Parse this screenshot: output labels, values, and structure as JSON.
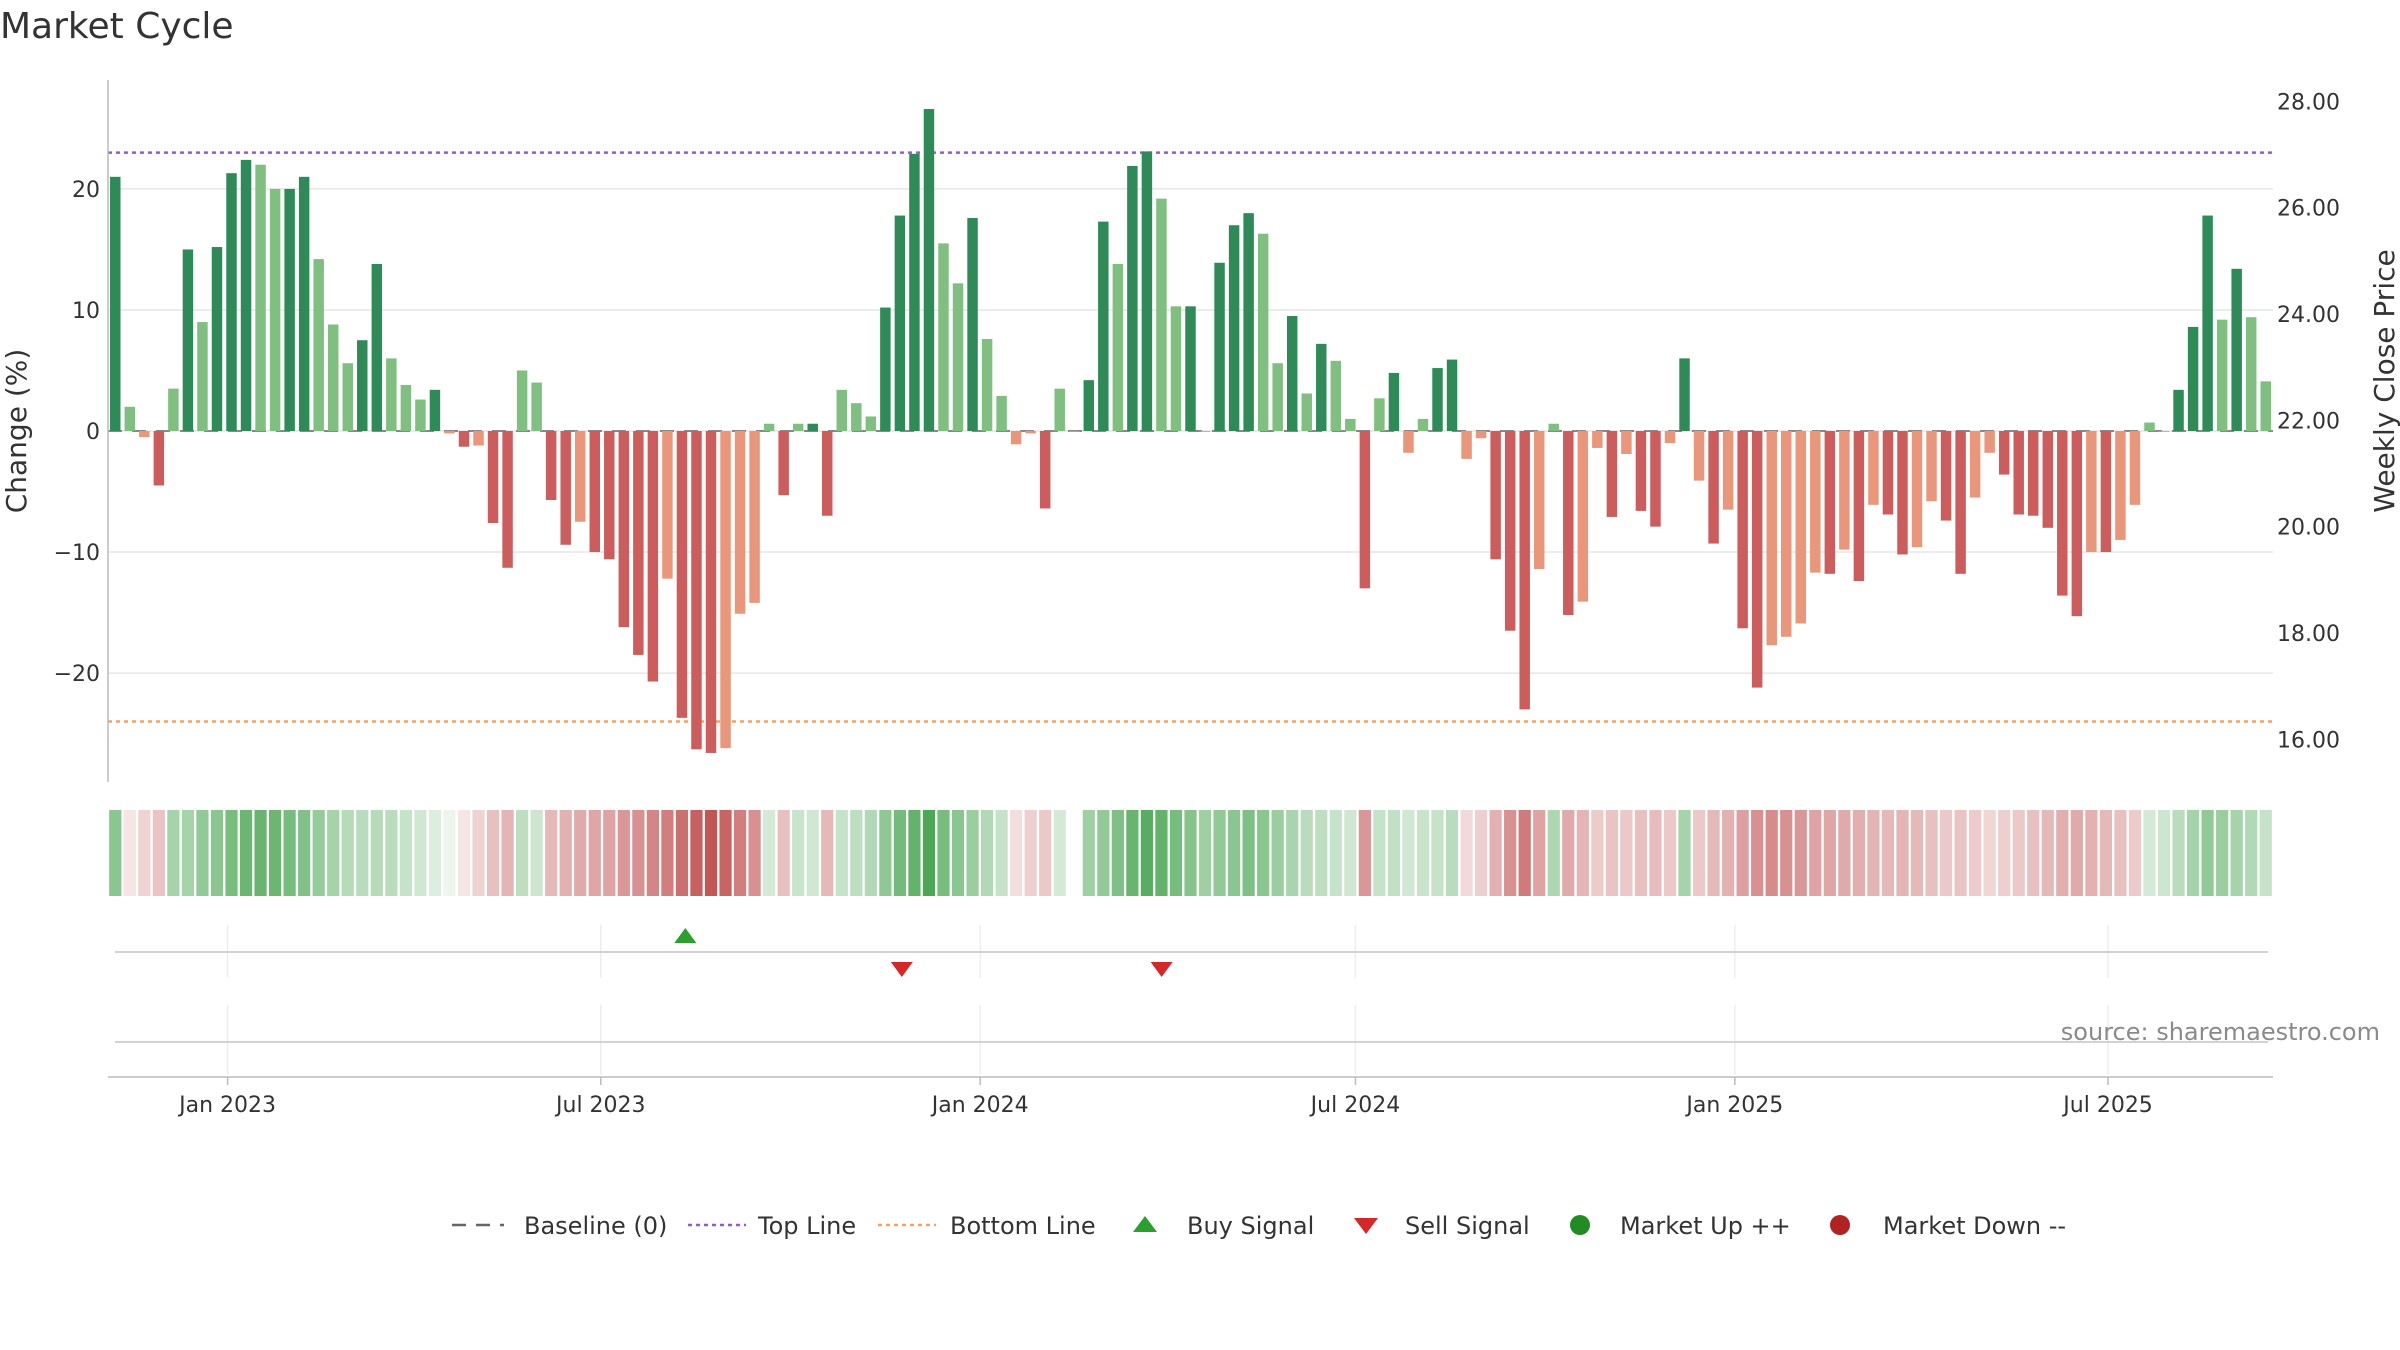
{
  "title": "Market Cycle",
  "source": "source: sharemaestro.com",
  "colors": {
    "up_strong": "#2e8b57",
    "up_weak": "#7fbf7f",
    "down_strong": "#cd5c5c",
    "down_weak": "#e9967a",
    "top_line": "#9b59d0",
    "bottom_line": "#f4a460",
    "buy": "#2ca02c",
    "sell": "#d62728",
    "market_up": "#228b22",
    "market_down": "#b22222",
    "baseline": "#666666"
  },
  "legend": [
    {
      "label": "Baseline (0)",
      "icon": "dash-line"
    },
    {
      "label": "Top Line",
      "icon": "dotted-purple-line"
    },
    {
      "label": "Bottom Line",
      "icon": "dotted-orange-line"
    },
    {
      "label": "Buy Signal",
      "icon": "triangle-up"
    },
    {
      "label": "Sell Signal",
      "icon": "triangle-down"
    },
    {
      "label": "Market Up ++",
      "icon": "green-dot"
    },
    {
      "label": "Market Down --",
      "icon": "red-dot"
    }
  ],
  "chart_data": {
    "type": "bar",
    "title": "Market Cycle",
    "ylabel": "Change (%)",
    "y2label": "Weekly Close Price",
    "ylim": [
      -29,
      29
    ],
    "y2lim": [
      15.2,
      28.4
    ],
    "yticks": [
      20,
      10,
      0,
      -10,
      -20
    ],
    "ytick_labels": [
      "20",
      "10",
      "0",
      "−10",
      "−20"
    ],
    "y2ticks": [
      28,
      26,
      24,
      22,
      20,
      18,
      16
    ],
    "y2tick_labels": [
      "28.00",
      "26.00",
      "24.00",
      "22.00",
      "20.00",
      "18.00",
      "16.00"
    ],
    "top_line": 23,
    "bottom_line": -24,
    "baseline": 0,
    "x_start": "2022-11-04",
    "x_end": "2025-09-19",
    "xticks": [
      "2023-01-01",
      "2023-07-01",
      "2024-01-01",
      "2024-07-01",
      "2025-01-01",
      "2025-07-01"
    ],
    "xtick_labels": [
      "Jan 2023",
      "Jul 2023",
      "Jan 2024",
      "Jul 2024",
      "Jan 2025",
      "Jul 2025"
    ],
    "values": [
      21,
      2,
      -0.5,
      -4.5,
      3.5,
      15,
      9,
      15.2,
      21.3,
      22.4,
      22,
      20,
      20,
      21,
      14.2,
      8.8,
      5.6,
      7.5,
      13.8,
      6,
      3.8,
      2.6,
      3.4,
      -0.2,
      -1.3,
      -1.2,
      -7.6,
      -11.3,
      5,
      4,
      -5.7,
      -9.4,
      -7.5,
      -10,
      -10.6,
      -16.2,
      -18.5,
      -20.7,
      -12.2,
      -23.7,
      -26.3,
      -26.6,
      -26.2,
      -15.1,
      -14.2,
      0.6,
      -5.3,
      0.6,
      0.6,
      -7,
      3.4,
      2.3,
      1.2,
      10.2,
      17.8,
      22.9,
      26.6,
      15.5,
      12.2,
      17.6,
      7.6,
      2.9,
      -1.1,
      -0.2,
      -6.4,
      3.5,
      0,
      4.2,
      17.3,
      13.8,
      21.9,
      23.1,
      19.2,
      10.3,
      10.3,
      0,
      13.9,
      17,
      18,
      16.3,
      5.6,
      9.5,
      3.1,
      7.2,
      5.8,
      1,
      -13,
      2.7,
      4.8,
      -1.8,
      1,
      5.2,
      5.9,
      -2.3,
      -0.6,
      -10.6,
      -16.5,
      -23,
      -11.4,
      0.6,
      -15.2,
      -14.1,
      -1.4,
      -7.1,
      -1.9,
      -6.6,
      -7.9,
      -1,
      6,
      -4.1,
      -9.3,
      -6.5,
      -16.3,
      -21.2,
      -17.7,
      -17,
      -15.9,
      -11.7,
      -11.8,
      -9.8,
      -12.4,
      -6.1,
      -6.9,
      -10.2,
      -9.6,
      -5.8,
      -7.4,
      -11.8,
      -5.5,
      -1.8,
      -3.6,
      -6.9,
      -7,
      -8,
      -13.6,
      -15.3,
      -10,
      -10,
      -9,
      -6.1,
      0.7,
      0,
      3.4,
      8.6,
      17.8,
      9.2,
      13.4,
      9.4,
      4.1
    ],
    "momentum": [
      0.6,
      -0.14,
      -0.24,
      -0.32,
      0.46,
      0.46,
      0.56,
      0.6,
      0.7,
      0.76,
      0.78,
      0.76,
      0.7,
      0.64,
      0.54,
      0.46,
      0.38,
      0.36,
      0.38,
      0.36,
      0.3,
      0.24,
      0.18,
      0.1,
      -0.14,
      -0.24,
      -0.34,
      -0.4,
      0.34,
      0.26,
      -0.38,
      -0.42,
      -0.46,
      -0.48,
      -0.5,
      -0.56,
      -0.6,
      -0.66,
      -0.7,
      -0.78,
      -0.86,
      -0.92,
      -0.84,
      -0.7,
      -0.6,
      0.22,
      -0.34,
      0.28,
      0.24,
      -0.38,
      0.3,
      0.34,
      0.4,
      0.58,
      0.72,
      0.8,
      0.92,
      0.7,
      0.6,
      0.52,
      0.4,
      0.3,
      -0.18,
      -0.26,
      -0.3,
      0.22,
      null,
      0.5,
      0.56,
      0.66,
      0.78,
      0.86,
      0.8,
      0.7,
      0.62,
      0.5,
      0.56,
      0.6,
      0.66,
      0.6,
      0.52,
      0.44,
      0.36,
      0.34,
      0.3,
      0.24,
      -0.56,
      0.3,
      0.32,
      0.24,
      0.28,
      0.3,
      0.36,
      -0.2,
      -0.26,
      -0.42,
      -0.6,
      -0.72,
      -0.5,
      0.42,
      -0.46,
      -0.4,
      -0.28,
      -0.32,
      -0.3,
      -0.34,
      -0.36,
      -0.3,
      0.46,
      -0.3,
      -0.38,
      -0.42,
      -0.52,
      -0.6,
      -0.62,
      -0.6,
      -0.56,
      -0.5,
      -0.48,
      -0.46,
      -0.44,
      -0.4,
      -0.38,
      -0.4,
      -0.38,
      -0.34,
      -0.3,
      -0.32,
      -0.28,
      -0.22,
      -0.26,
      -0.3,
      -0.34,
      -0.38,
      -0.44,
      -0.46,
      -0.42,
      -0.38,
      -0.34,
      -0.28,
      0.22,
      0.26,
      0.36,
      0.46,
      0.56,
      0.52,
      0.46,
      0.4,
      0.3
    ],
    "buy_signals": [
      "2023-08-11"
    ],
    "sell_signals": [
      "2023-11-24",
      "2024-03-29"
    ],
    "grid": true,
    "legend_position": "bottom-center"
  }
}
